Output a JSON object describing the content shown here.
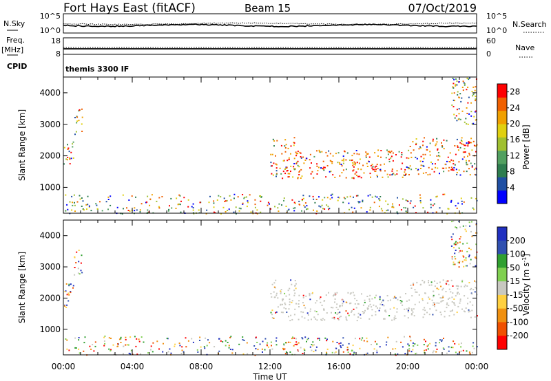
{
  "header": {
    "station": "Fort Hays East (fitACF)",
    "beam": "Beam 15",
    "date": "07/Oct/2019"
  },
  "panels": {
    "nsky": {
      "left_label": "N.Sky",
      "left_ticks": [
        "10^5",
        "10^0"
      ],
      "right_label": "N.Search",
      "right_ticks": [
        "10^5",
        "10^0"
      ]
    },
    "freq": {
      "left_label_1": "Freq.",
      "left_label_2": "[MHz]",
      "left_ticks": [
        "18",
        "8"
      ],
      "right_label": "Nave",
      "right_ticks": [
        "60",
        "0"
      ]
    },
    "cpid": {
      "label": "CPID",
      "mode": "themis 3300 IF"
    }
  },
  "colors": {
    "power_scale": [
      "#0000ff",
      "#1f4fa3",
      "#2e7d4f",
      "#52a060",
      "#a0c030",
      "#e0d010",
      "#f0a000",
      "#f06000",
      "#ff0000"
    ],
    "velocity_scale": [
      "#2030c0",
      "#3050b0",
      "#30a030",
      "#80d050",
      "#c8c8c0",
      "#ffd040",
      "#f09010",
      "#f05000",
      "#ff0000"
    ],
    "velocity_ground": "#c8c8c0"
  },
  "chart_data": [
    {
      "type": "heatmap",
      "name": "power",
      "ylabel": "Slant Range [km]",
      "yticks": [
        1000,
        2000,
        3000,
        4000
      ],
      "ylim": [
        180,
        4500
      ],
      "x_hours": [
        0,
        24
      ],
      "colorbar": {
        "label": "Power [dB]",
        "ticks": [
          "4",
          "8",
          "12",
          "16",
          "20",
          "24",
          "28"
        ],
        "range": [
          0,
          30
        ]
      },
      "regions": [
        {
          "t_start": 0.0,
          "t_end": 0.6,
          "r_start": 1700,
          "r_end": 2500
        },
        {
          "t_start": 0.6,
          "t_end": 1.1,
          "r_start": 2700,
          "r_end": 3600
        },
        {
          "t_start": 12.0,
          "t_end": 13.5,
          "r_start": 1300,
          "r_end": 2600
        },
        {
          "t_start": 13.5,
          "t_end": 20.0,
          "r_start": 1300,
          "r_end": 2200
        },
        {
          "t_start": 20.0,
          "t_end": 24.0,
          "r_start": 1400,
          "r_end": 2600
        },
        {
          "t_start": 22.5,
          "t_end": 24.0,
          "r_start": 3000,
          "r_end": 4500
        },
        {
          "t_start": 0.0,
          "t_end": 24.0,
          "r_start": 180,
          "r_end": 800
        }
      ]
    },
    {
      "type": "heatmap",
      "name": "velocity",
      "ylabel": "Slant Range [km]",
      "yticks": [
        1000,
        2000,
        3000,
        4000
      ],
      "ylim": [
        180,
        4500
      ],
      "x_hours": [
        0,
        24
      ],
      "xticks": [
        "00:00",
        "04:00",
        "08:00",
        "12:00",
        "16:00",
        "20:00",
        "00:00"
      ],
      "xlabel": "Time UT",
      "colorbar": {
        "label": "Velocity [m s",
        "label_sup": "-1",
        "ticks": [
          "200",
          "100",
          "50",
          "15",
          "-15",
          "-50",
          "-100",
          "-200"
        ],
        "range": [
          -250,
          250
        ]
      },
      "regions": [
        {
          "t_start": 0.0,
          "t_end": 0.6,
          "r_start": 1700,
          "r_end": 2500
        },
        {
          "t_start": 0.6,
          "t_end": 1.1,
          "r_start": 2700,
          "r_end": 3600
        },
        {
          "t_start": 12.0,
          "t_end": 13.5,
          "r_start": 1300,
          "r_end": 2600
        },
        {
          "t_start": 13.5,
          "t_end": 20.0,
          "r_start": 1300,
          "r_end": 2200
        },
        {
          "t_start": 20.0,
          "t_end": 24.0,
          "r_start": 1400,
          "r_end": 2600
        },
        {
          "t_start": 22.5,
          "t_end": 24.0,
          "r_start": 3000,
          "r_end": 4500
        },
        {
          "t_start": 0.0,
          "t_end": 24.0,
          "r_start": 180,
          "r_end": 800
        }
      ]
    }
  ]
}
